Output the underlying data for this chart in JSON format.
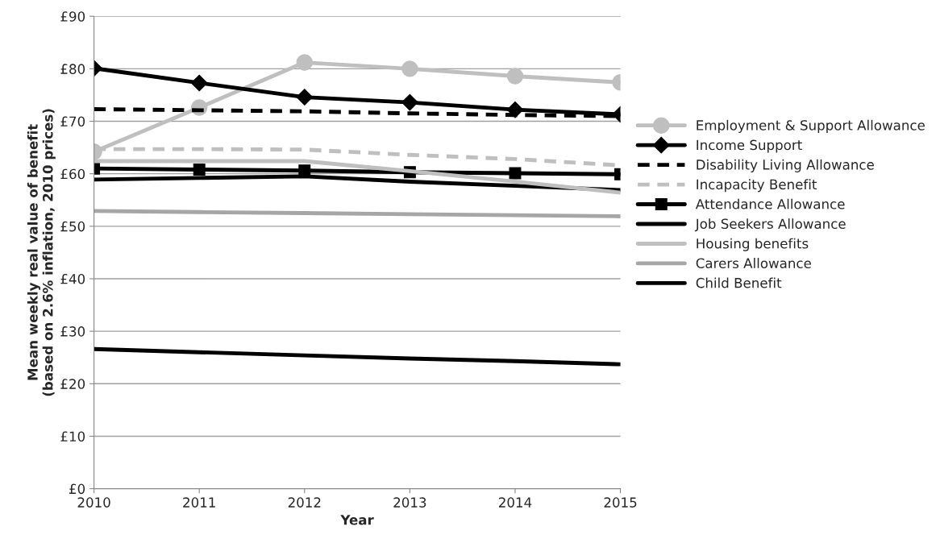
{
  "chart_data": {
    "type": "line",
    "xlabel": "Year",
    "ylabel": "Mean weekly real value of benefit\n(based on 2.6% inflation, 2010 prices)",
    "x": [
      2010,
      2011,
      2012,
      2013,
      2014,
      2015
    ],
    "xlim": [
      2010,
      2015
    ],
    "xticks": [
      2010,
      2011,
      2012,
      2013,
      2014,
      2015
    ],
    "ylim": [
      0,
      90
    ],
    "yticks": [
      {
        "value": 0,
        "label": "£0"
      },
      {
        "value": 10,
        "label": "£10"
      },
      {
        "value": 20,
        "label": "£20"
      },
      {
        "value": 30,
        "label": "£30"
      },
      {
        "value": 40,
        "label": "£40"
      },
      {
        "value": 50,
        "label": "£50"
      },
      {
        "value": 60,
        "label": "£60"
      },
      {
        "value": 70,
        "label": "£70"
      },
      {
        "value": 80,
        "label": "£80"
      },
      {
        "value": 90,
        "label": "£90"
      }
    ],
    "grid": "y",
    "legend": "right",
    "series": [
      {
        "name": "Employment & Support Allowance",
        "color": "#bfbfbf",
        "marker": "circle",
        "line_style": "solid",
        "values": [
          64.2,
          72.6,
          81.2,
          80.0,
          78.6,
          77.4
        ]
      },
      {
        "name": "Income Support",
        "color": "#000000",
        "marker": "diamond",
        "line_style": "solid",
        "values": [
          80.1,
          77.3,
          74.6,
          73.6,
          72.2,
          71.3
        ]
      },
      {
        "name": "Disability Living Allowance",
        "color": "#000000",
        "marker": "none",
        "line_style": "dashed",
        "values": [
          72.3,
          72.1,
          71.9,
          71.5,
          71.2,
          71.0
        ]
      },
      {
        "name": "Incapacity Benefit",
        "color": "#bfbfbf",
        "marker": "none",
        "line_style": "dashed",
        "values": [
          64.7,
          64.7,
          64.6,
          63.6,
          62.8,
          61.6
        ]
      },
      {
        "name": "Attendance Allowance",
        "color": "#000000",
        "marker": "square",
        "line_style": "solid",
        "values": [
          61.0,
          60.8,
          60.6,
          60.3,
          60.1,
          59.9
        ]
      },
      {
        "name": "Job Seekers Allowance",
        "color": "#000000",
        "marker": "none",
        "line_style": "solid",
        "values": [
          58.9,
          59.2,
          59.5,
          58.5,
          57.7,
          56.9
        ]
      },
      {
        "name": "Housing benefits",
        "color": "#bfbfbf",
        "marker": "none",
        "line_style": "solid",
        "values": [
          62.4,
          62.4,
          62.4,
          60.5,
          58.5,
          56.4
        ]
      },
      {
        "name": "Carers Allowance",
        "color": "#a6a6a6",
        "marker": "none",
        "line_style": "solid",
        "values": [
          52.9,
          52.7,
          52.5,
          52.3,
          52.1,
          51.9
        ]
      },
      {
        "name": "Child Benefit",
        "color": "#000000",
        "marker": "none",
        "line_style": "solid",
        "values": [
          26.6,
          26.0,
          25.4,
          24.8,
          24.3,
          23.7
        ]
      }
    ]
  }
}
